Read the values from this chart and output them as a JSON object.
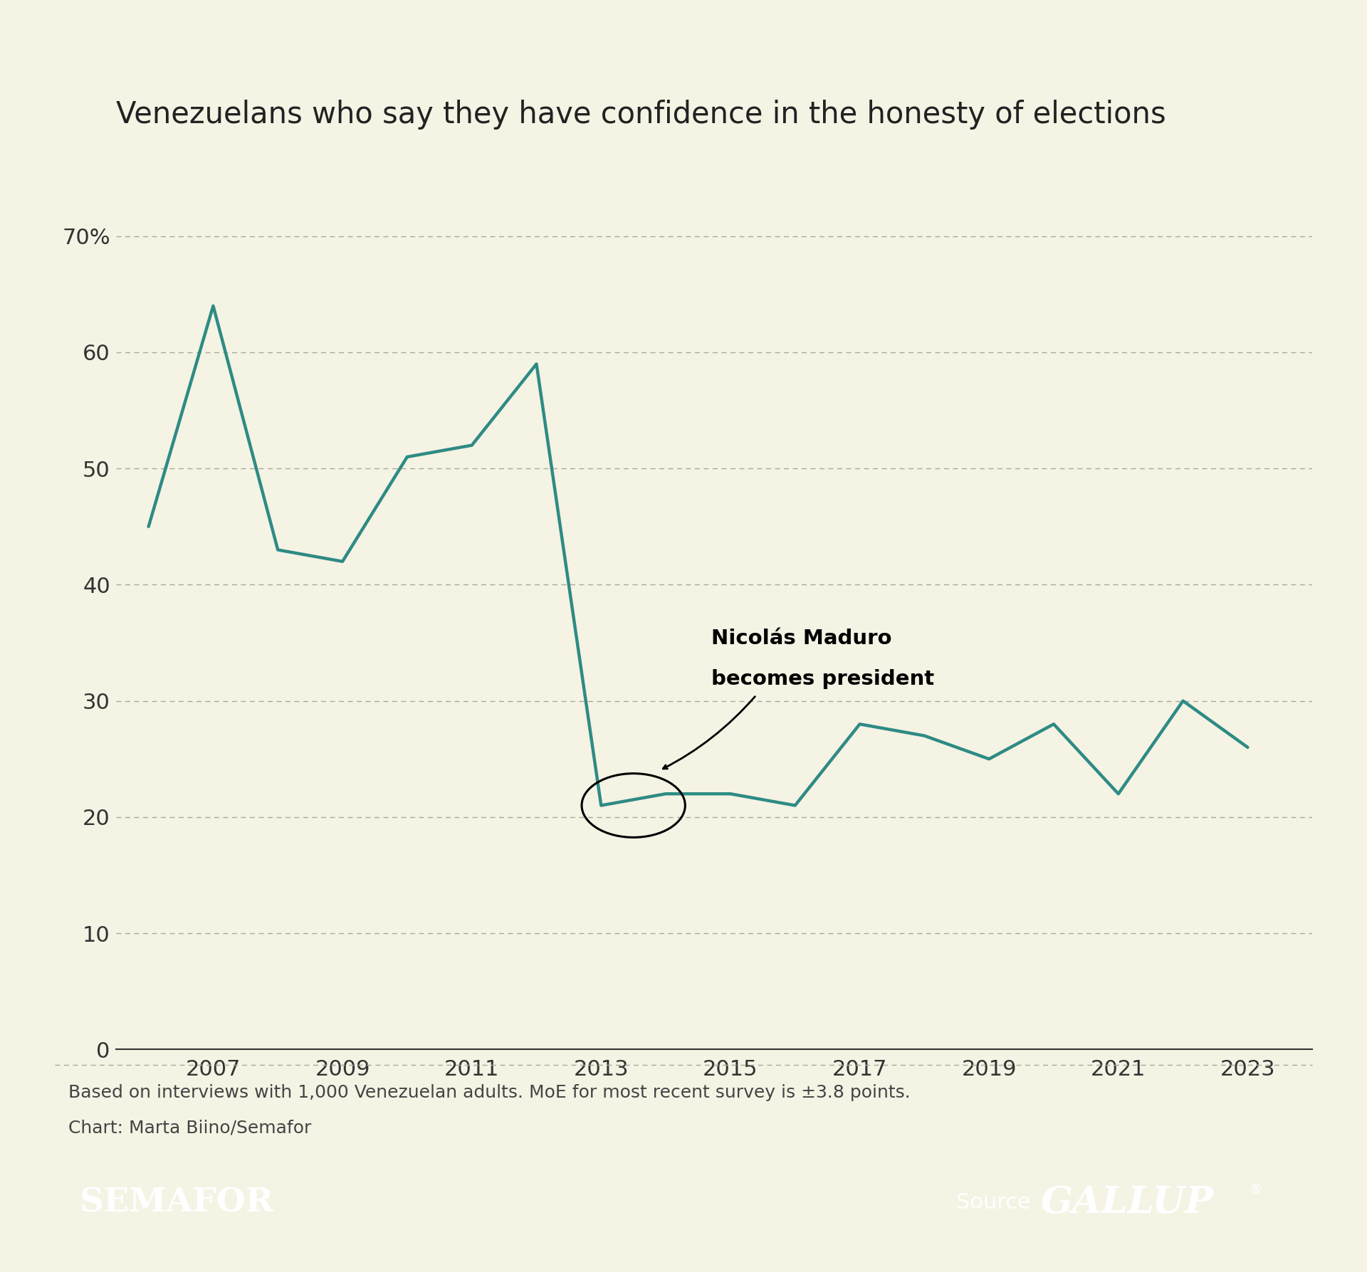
{
  "title": "Venezuelans who say they have confidence in the honesty of elections",
  "years": [
    2006,
    2007,
    2008,
    2009,
    2010,
    2011,
    2012,
    2013,
    2014,
    2015,
    2016,
    2017,
    2018,
    2019,
    2020,
    2021,
    2022,
    2023
  ],
  "values": [
    45,
    64,
    43,
    42,
    51,
    52,
    59,
    21,
    22,
    22,
    21,
    28,
    27,
    25,
    28,
    22,
    30,
    26
  ],
  "line_color": "#2e8b84",
  "line_width": 3.2,
  "background_color": "#f5f3e4",
  "grid_color": "#aaa89a",
  "ylim": [
    0,
    75
  ],
  "yticks": [
    0,
    10,
    20,
    30,
    40,
    50,
    60,
    70
  ],
  "ytick_labels": [
    "0",
    "10",
    "20",
    "30",
    "40",
    "50",
    "60",
    "70%"
  ],
  "xticks": [
    2007,
    2009,
    2011,
    2013,
    2015,
    2017,
    2019,
    2021,
    2023
  ],
  "annotation_text_line1": "Nicolás Maduro",
  "annotation_text_line2": "becomes president",
  "footer_text1": "Based on interviews with 1,000 Venezuelan adults. MoE for most recent survey is ±3.8 points.",
  "footer_text2": "Chart: Marta Biino/Semafor",
  "semafor_color": "#3a7d44",
  "semafor_text": "SEMAFOR",
  "source_text": "Source",
  "gallup_text": "GALLUP",
  "title_fontsize": 30,
  "axis_fontsize": 22,
  "annotation_fontsize": 21,
  "footer_fontsize": 18,
  "banner_semafor_fontsize": 34,
  "banner_source_fontsize": 22,
  "banner_gallup_fontsize": 38
}
